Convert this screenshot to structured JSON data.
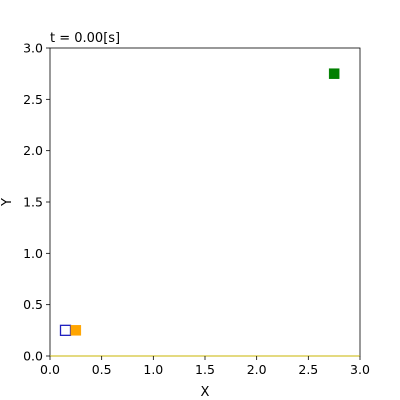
{
  "chart_data": {
    "type": "scatter",
    "title": "t = 0.00[s]",
    "xlabel": "X",
    "ylabel": "Y",
    "xlim": [
      0.0,
      3.0
    ],
    "ylim": [
      0.0,
      3.0
    ],
    "xticks": [
      "0.0",
      "0.5",
      "1.0",
      "1.5",
      "2.0",
      "2.5",
      "3.0"
    ],
    "yticks": [
      "0.0",
      "0.5",
      "1.0",
      "1.5",
      "2.0",
      "2.5",
      "3.0"
    ],
    "grid": false,
    "legend": "none",
    "series": [
      {
        "marker": "square-hollow",
        "color": "#1f1fbf",
        "points": [
          {
            "x": 0.15,
            "y": 0.25
          }
        ]
      },
      {
        "marker": "square-filled",
        "color": "#ffa500",
        "points": [
          {
            "x": 0.25,
            "y": 0.25
          }
        ]
      },
      {
        "marker": "square-filled",
        "color": "#008000",
        "points": [
          {
            "x": 2.75,
            "y": 2.75
          }
        ]
      }
    ]
  }
}
